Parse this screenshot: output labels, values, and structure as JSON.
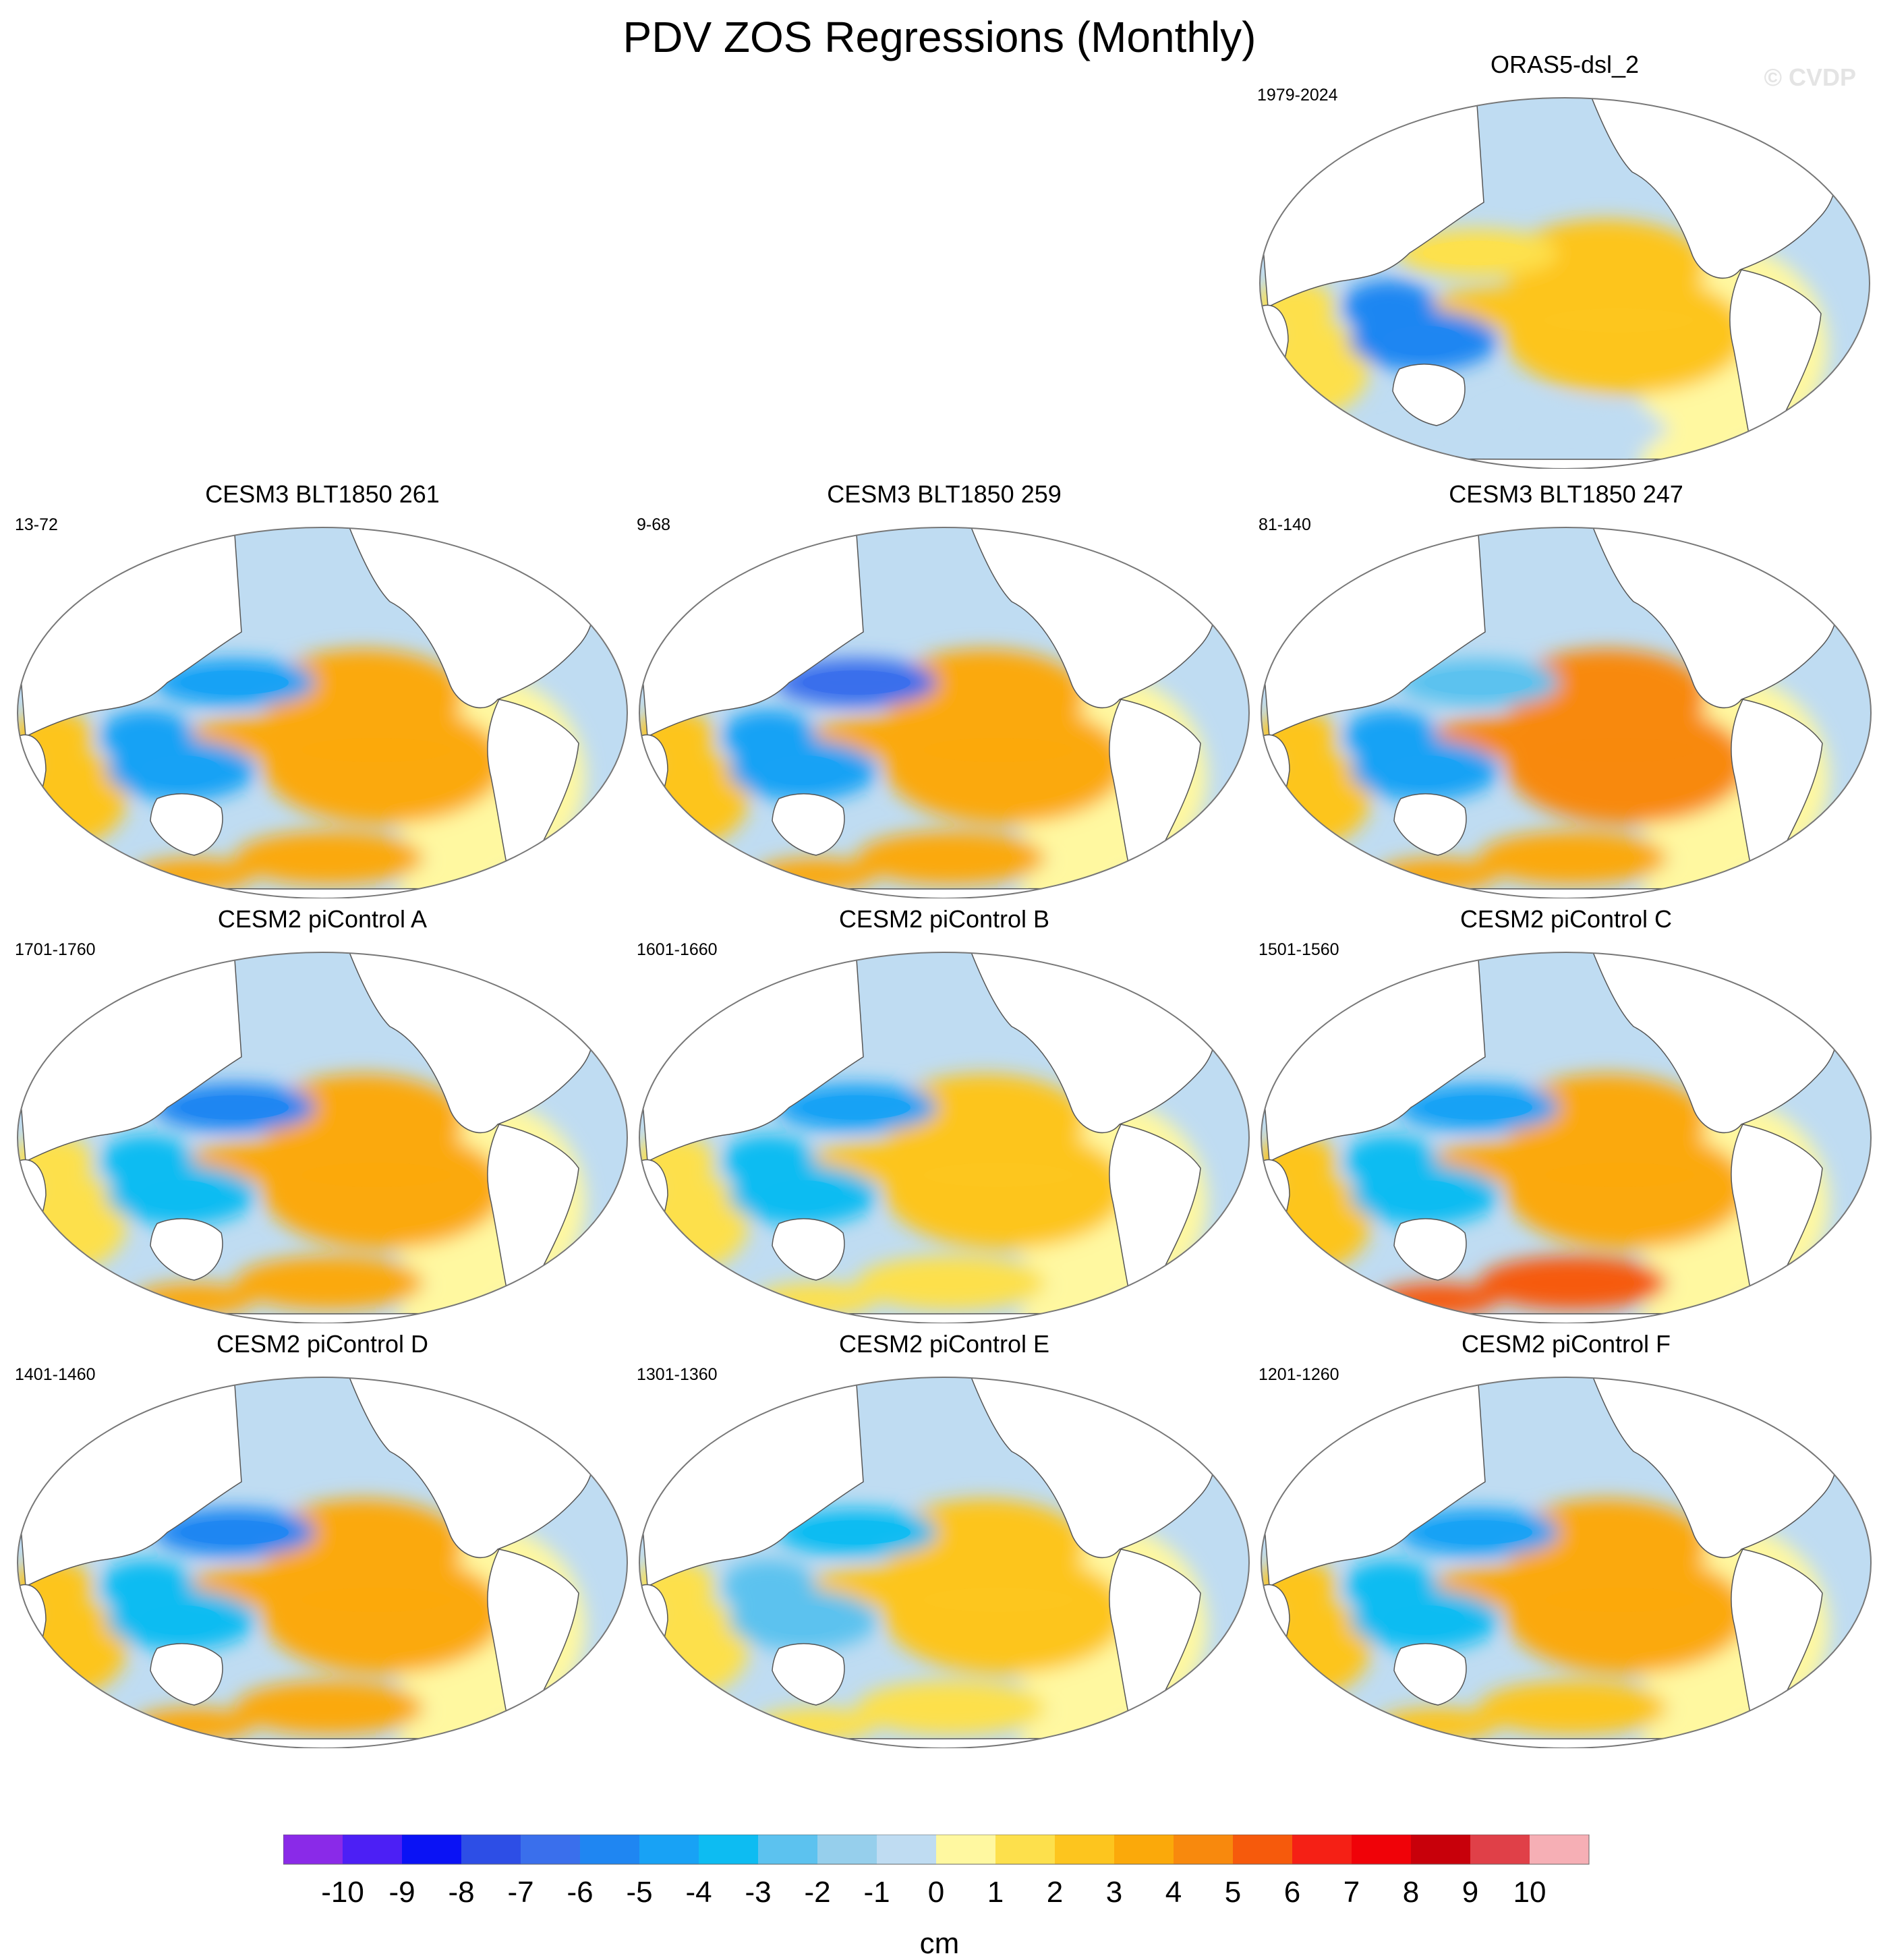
{
  "figure": {
    "title": "PDV ZOS Regressions (Monthly)",
    "watermark": "© CVDP"
  },
  "chart_data": {
    "type": "map",
    "projection": "Robinson (Pacific-centered)",
    "variable": "ZOS regression onto PDV index",
    "panels": [
      {
        "id": "obs",
        "title": "ORAS5-dsl_2",
        "period": "1979-2024",
        "features": [
          {
            "name": "Tropical east Pacific",
            "value": 2.5
          },
          {
            "name": "North Pacific",
            "value": 1
          },
          {
            "name": "Western tropical Pacific",
            "value": -6
          },
          {
            "name": "Indian Ocean",
            "value": 1
          },
          {
            "name": "Atlantic",
            "value": 0.5
          },
          {
            "name": "Southern Ocean",
            "value": -1
          }
        ]
      },
      {
        "id": "cesm3-261",
        "title": "CESM3 BLT1850 261",
        "period": "13-72",
        "features": [
          {
            "name": "Tropical east Pacific",
            "value": 3.5
          },
          {
            "name": "North Pacific",
            "value": -5
          },
          {
            "name": "Western tropical Pacific",
            "value": -4.5
          },
          {
            "name": "Indian Ocean",
            "value": 2
          },
          {
            "name": "Atlantic",
            "value": 0.5
          },
          {
            "name": "Southern Ocean",
            "value": 3
          }
        ]
      },
      {
        "id": "cesm3-259",
        "title": "CESM3 BLT1850 259",
        "period": "9-68",
        "features": [
          {
            "name": "Tropical east Pacific",
            "value": 3.5
          },
          {
            "name": "North Pacific",
            "value": -7
          },
          {
            "name": "Western tropical Pacific",
            "value": -4.5
          },
          {
            "name": "Indian Ocean",
            "value": 2
          },
          {
            "name": "Atlantic",
            "value": 0.5
          },
          {
            "name": "Southern Ocean",
            "value": 3.5
          }
        ]
      },
      {
        "id": "cesm3-247",
        "title": "CESM3 BLT1850 247",
        "period": "81-140",
        "features": [
          {
            "name": "Tropical east Pacific",
            "value": 4
          },
          {
            "name": "North Pacific",
            "value": -3
          },
          {
            "name": "Western tropical Pacific",
            "value": -4.5
          },
          {
            "name": "Indian Ocean",
            "value": 2
          },
          {
            "name": "Atlantic",
            "value": 0.5
          },
          {
            "name": "Southern Ocean",
            "value": 3
          }
        ]
      },
      {
        "id": "pic-a",
        "title": "CESM2 piControl A",
        "period": "1701-1760",
        "features": [
          {
            "name": "Tropical east Pacific",
            "value": 3
          },
          {
            "name": "North Pacific",
            "value": -5.5
          },
          {
            "name": "Western tropical Pacific",
            "value": -3.5
          },
          {
            "name": "Indian Ocean",
            "value": 1
          },
          {
            "name": "Atlantic",
            "value": 0.5
          },
          {
            "name": "Southern Ocean",
            "value": 3
          }
        ]
      },
      {
        "id": "pic-b",
        "title": "CESM2 piControl B",
        "period": "1601-1660",
        "features": [
          {
            "name": "Tropical east Pacific",
            "value": 2.5
          },
          {
            "name": "North Pacific",
            "value": -5
          },
          {
            "name": "Western tropical Pacific",
            "value": -3.5
          },
          {
            "name": "Indian Ocean",
            "value": 1
          },
          {
            "name": "Atlantic",
            "value": 0.5
          },
          {
            "name": "Southern Ocean",
            "value": 1.5
          }
        ]
      },
      {
        "id": "pic-c",
        "title": "CESM2 piControl C",
        "period": "1501-1560",
        "features": [
          {
            "name": "Tropical east Pacific",
            "value": 3.5
          },
          {
            "name": "North Pacific",
            "value": -5
          },
          {
            "name": "Western tropical Pacific",
            "value": -3.5
          },
          {
            "name": "Indian Ocean",
            "value": 2
          },
          {
            "name": "Atlantic",
            "value": 0.5
          },
          {
            "name": "Southern Ocean",
            "value": 5
          }
        ]
      },
      {
        "id": "pic-d",
        "title": "CESM2 piControl D",
        "period": "1401-1460",
        "features": [
          {
            "name": "Tropical east Pacific",
            "value": 3.5
          },
          {
            "name": "North Pacific",
            "value": -5.5
          },
          {
            "name": "Western tropical Pacific",
            "value": -3.5
          },
          {
            "name": "Indian Ocean",
            "value": 2
          },
          {
            "name": "Atlantic",
            "value": 0.5
          },
          {
            "name": "Southern Ocean",
            "value": 3
          }
        ]
      },
      {
        "id": "pic-e",
        "title": "CESM2 piControl E",
        "period": "1301-1360",
        "features": [
          {
            "name": "Tropical east Pacific",
            "value": 2.5
          },
          {
            "name": "North Pacific",
            "value": -4
          },
          {
            "name": "Western tropical Pacific",
            "value": -3
          },
          {
            "name": "Indian Ocean",
            "value": 1
          },
          {
            "name": "Atlantic",
            "value": 0.5
          },
          {
            "name": "Southern Ocean",
            "value": 1.5
          }
        ]
      },
      {
        "id": "pic-f",
        "title": "CESM2 piControl F",
        "period": "1201-1260",
        "features": [
          {
            "name": "Tropical east Pacific",
            "value": 3
          },
          {
            "name": "North Pacific",
            "value": -5
          },
          {
            "name": "Western tropical Pacific",
            "value": -3.5
          },
          {
            "name": "Indian Ocean",
            "value": 2
          },
          {
            "name": "Atlantic",
            "value": 0.5
          },
          {
            "name": "Southern Ocean",
            "value": 2
          }
        ]
      }
    ],
    "colorbar": {
      "label": "cm",
      "ticks": [
        "-10",
        "-9",
        "-8",
        "-7",
        "-6",
        "-5",
        "-4",
        "-3",
        "-2",
        "-1",
        "0",
        "1",
        "2",
        "3",
        "4",
        "5",
        "6",
        "7",
        "8",
        "9",
        "10"
      ],
      "levels": [
        -10,
        -9,
        -8,
        -7,
        -6,
        -5,
        -4,
        -3,
        -2,
        -1,
        0,
        1,
        2,
        3,
        4,
        5,
        6,
        7,
        8,
        9,
        10
      ],
      "colors": [
        "#8a2ae8",
        "#4c1ff5",
        "#0a12f5",
        "#2d4ee6",
        "#3a6fec",
        "#1f86f2",
        "#18a2f5",
        "#0dbcf2",
        "#5cc2ef",
        "#96cfec",
        "#bfdcf2",
        "#fff8a0",
        "#fde04c",
        "#fdc51e",
        "#fba90a",
        "#f8890d",
        "#f65a0c",
        "#f52015",
        "#f00208",
        "#c8000a",
        "#e04048",
        "#f6afb5"
      ]
    }
  }
}
